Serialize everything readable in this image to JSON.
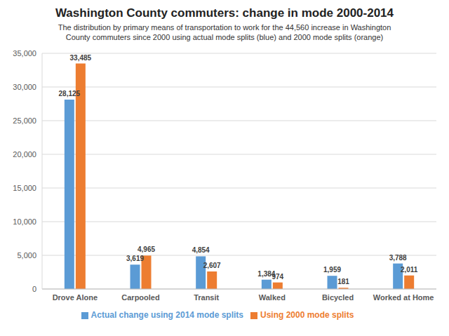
{
  "chart_data": {
    "type": "bar",
    "title": "Washington County commuters: change in mode 2000-2014",
    "subtitle": "The distribution by primary means of transportation to work for the 44,560 increase in Washington County commuters since 2000 using actual mode splits (blue) and 2000 mode splits (orange)",
    "categories": [
      "Drove Alone",
      "Carpooled",
      "Transit",
      "Walked",
      "Bicycled",
      "Worked at Home"
    ],
    "series": [
      {
        "name": "Actual change using 2014 mode splits",
        "color": "#5B9BD5",
        "values": [
          28125,
          3619,
          4854,
          1384,
          1959,
          3788
        ],
        "value_labels": [
          "28,125",
          "3,619",
          "4,854",
          "1,384",
          "1,959",
          "3,788"
        ]
      },
      {
        "name": "Using 2000 mode splits",
        "color": "#ED7D31",
        "values": [
          33485,
          4965,
          2607,
          974,
          181,
          2011
        ],
        "value_labels": [
          "33,485",
          "4,965",
          "2,607",
          "974",
          "181",
          "2,011"
        ]
      }
    ],
    "ylim": [
      0,
      35000
    ],
    "yticks": [
      0,
      {
        "value": 5000,
        "label": "5,000"
      },
      {
        "value": 10000,
        "label": "10,000"
      },
      {
        "value": 15000,
        "label": "15,000"
      },
      {
        "value": 20000,
        "label": "20,000"
      },
      {
        "value": 25000,
        "label": "25,000"
      },
      {
        "value": 30000,
        "label": "30,000"
      },
      {
        "value": 35000,
        "label": "35,000"
      }
    ],
    "grid": true,
    "legend": "bottom",
    "data_labels": true
  }
}
